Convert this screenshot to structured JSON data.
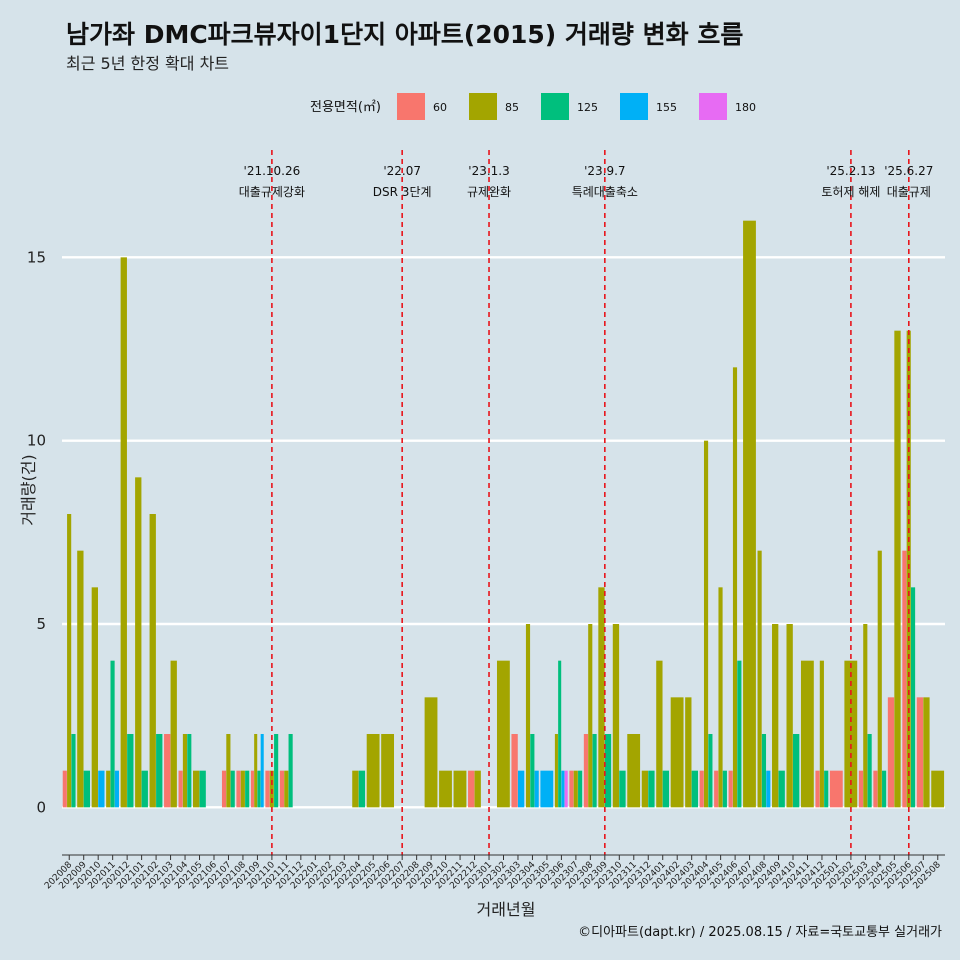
{
  "title": "남가좌 DMC파크뷰자이1단지 아파트(2015) 거래량 변화 흐름",
  "subtitle": "최근 5년 한정 확대 차트",
  "caption": "©디아파트(dapt.kr) / 2025.08.15 / 자료=국토교통부 실거래가",
  "chart_data": {
    "type": "bar",
    "xlabel": "거래년월",
    "ylabel": "거래량(건)",
    "ylim": [
      -1.3,
      18.2
    ],
    "yticks": [
      0,
      5,
      10,
      15
    ],
    "legend": {
      "title": "전용면적(㎡)",
      "position": "top",
      "entries": [
        {
          "name": "60",
          "color": "#f8766d"
        },
        {
          "name": "85",
          "color": "#a3a500"
        },
        {
          "name": "125",
          "color": "#00bf7d"
        },
        {
          "name": "155",
          "color": "#00b0f6"
        },
        {
          "name": "180",
          "color": "#e76bf3"
        }
      ]
    },
    "categories": [
      "202008",
      "202009",
      "202010",
      "202011",
      "202012",
      "202101",
      "202102",
      "202103",
      "202104",
      "202105",
      "202106",
      "202107",
      "202108",
      "202109",
      "202110",
      "202111",
      "202112",
      "202201",
      "202202",
      "202203",
      "202204",
      "202205",
      "202206",
      "202207",
      "202208",
      "202209",
      "202210",
      "202211",
      "202212",
      "202301",
      "202302",
      "202303",
      "202304",
      "202305",
      "202306",
      "202307",
      "202308",
      "202309",
      "202310",
      "202311",
      "202312",
      "202401",
      "202402",
      "202403",
      "202404",
      "202405",
      "202406",
      "202407",
      "202408",
      "202409",
      "202410",
      "202411",
      "202412",
      "202501",
      "202502",
      "202503",
      "202504",
      "202505",
      "202506",
      "202507",
      "202508"
    ],
    "series": [
      {
        "name": "60",
        "values": [
          1,
          0,
          0,
          0,
          0,
          0,
          0,
          2,
          1,
          0,
          0,
          1,
          1,
          1,
          1,
          1,
          0,
          0,
          0,
          0,
          0,
          0,
          0,
          0,
          0,
          0,
          0,
          0,
          1,
          0,
          0,
          2,
          0,
          0,
          0,
          1,
          2,
          0,
          0,
          0,
          0,
          0,
          0,
          0,
          1,
          1,
          1,
          0,
          0,
          0,
          0,
          0,
          1,
          1,
          0,
          1,
          1,
          3,
          7,
          3,
          0
        ]
      },
      {
        "name": "85",
        "values": [
          8,
          7,
          6,
          1,
          15,
          9,
          8,
          4,
          2,
          1,
          0,
          2,
          1,
          2,
          1,
          1,
          0,
          0,
          0,
          0,
          1,
          2,
          2,
          0,
          0,
          3,
          1,
          1,
          1,
          0,
          4,
          0,
          5,
          0,
          2,
          1,
          5,
          6,
          5,
          2,
          1,
          4,
          3,
          3,
          10,
          6,
          12,
          16,
          7,
          5,
          5,
          4,
          4,
          0,
          4,
          5,
          7,
          13,
          13,
          3,
          1
        ]
      },
      {
        "name": "125",
        "values": [
          2,
          1,
          0,
          4,
          2,
          1,
          2,
          0,
          2,
          1,
          0,
          1,
          1,
          1,
          2,
          2,
          0,
          0,
          0,
          0,
          1,
          0,
          0,
          0,
          0,
          0,
          0,
          0,
          0,
          0,
          0,
          0,
          2,
          0,
          4,
          1,
          2,
          2,
          1,
          0,
          1,
          1,
          0,
          1,
          2,
          1,
          4,
          0,
          2,
          1,
          2,
          0,
          1,
          0,
          0,
          2,
          1,
          0,
          6,
          0,
          0
        ]
      },
      {
        "name": "155",
        "values": [
          0,
          0,
          1,
          1,
          0,
          0,
          0,
          0,
          0,
          0,
          0,
          0,
          0,
          2,
          0,
          0,
          0,
          0,
          0,
          0,
          0,
          0,
          0,
          0,
          0,
          0,
          0,
          0,
          0,
          0,
          0,
          1,
          1,
          1,
          1,
          0,
          0,
          0,
          0,
          0,
          0,
          0,
          0,
          0,
          0,
          0,
          0,
          0,
          1,
          0,
          0,
          0,
          0,
          0,
          0,
          0,
          0,
          0,
          0,
          0,
          0
        ]
      },
      {
        "name": "180",
        "values": [
          0,
          0,
          0,
          0,
          0,
          0,
          0,
          0,
          0,
          0,
          0,
          0,
          0,
          0,
          0,
          0,
          0,
          0,
          0,
          0,
          0,
          0,
          0,
          0,
          0,
          0,
          0,
          0,
          0,
          0,
          0,
          0,
          0,
          0,
          1,
          0,
          0,
          0,
          0,
          0,
          0,
          0,
          0,
          0,
          0,
          0,
          0,
          0,
          0,
          0,
          0,
          0,
          0,
          0,
          0,
          0,
          0,
          0,
          0,
          0,
          0
        ]
      }
    ],
    "events": [
      {
        "date": "'21.10.26",
        "label": "대출규제강화",
        "x": "202110"
      },
      {
        "date": "'22.07",
        "label": "DSR 3단계",
        "x": "202207"
      },
      {
        "date": "'23.1.3",
        "label": "규제완화",
        "x": "202301"
      },
      {
        "date": "'23.9.7",
        "label": "특례대출축소",
        "x": "202309"
      },
      {
        "date": "'25.2.13",
        "label": "토허제 해제",
        "x": "202502"
      },
      {
        "date": "'25.6.27",
        "label": "대출규제",
        "x": "202506"
      }
    ],
    "grid": true
  }
}
